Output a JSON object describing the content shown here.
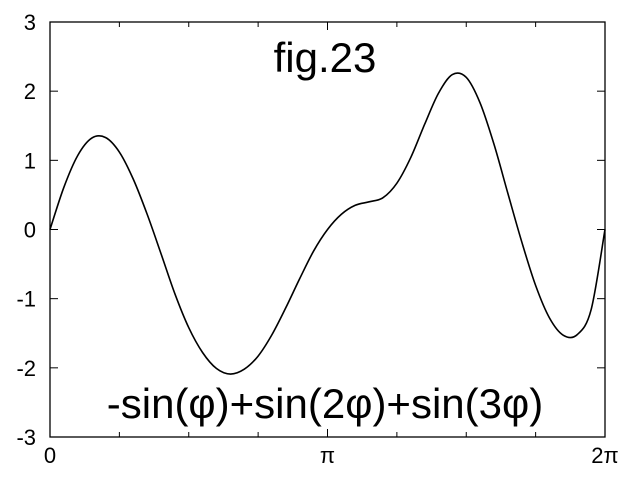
{
  "chart_data": {
    "type": "line",
    "title": "fig.23",
    "annotation": "-sin(φ)+sin(2φ)+sin(3φ)",
    "xlabel": "",
    "ylabel": "",
    "xlim": [
      0,
      6.283185307
    ],
    "ylim": [
      -3,
      3
    ],
    "grid": false,
    "x_ticks": [
      {
        "value": 0,
        "label": "0"
      },
      {
        "value": 3.141592654,
        "label": "π"
      },
      {
        "value": 6.283185307,
        "label": "2π"
      }
    ],
    "y_ticks": [
      {
        "value": -3,
        "label": "-3"
      },
      {
        "value": -2,
        "label": "-2"
      },
      {
        "value": -1,
        "label": "-1"
      },
      {
        "value": 0,
        "label": "0"
      },
      {
        "value": 1,
        "label": "1"
      },
      {
        "value": 2,
        "label": "2"
      },
      {
        "value": 3,
        "label": "3"
      }
    ],
    "series": [
      {
        "color": "#000000",
        "x": [
          0,
          0.157,
          0.314,
          0.471,
          0.628,
          0.785,
          0.942,
          1.1,
          1.257,
          1.414,
          1.571,
          1.728,
          1.885,
          2.042,
          2.199,
          2.356,
          2.513,
          2.67,
          2.827,
          2.985,
          3.142,
          3.299,
          3.456,
          3.613,
          3.77,
          3.927,
          4.084,
          4.241,
          4.398,
          4.555,
          4.712,
          4.869,
          5.027,
          5.184,
          5.341,
          5.498,
          5.655,
          5.812,
          5.969,
          6.126,
          6.283
        ],
        "y": [
          0,
          0.61,
          1.07,
          1.32,
          1.33,
          1.12,
          0.73,
          0.22,
          -0.35,
          -0.93,
          -1.42,
          -1.78,
          -2.01,
          -2.09,
          -2.02,
          -1.83,
          -1.52,
          -1.13,
          -0.71,
          -0.31,
          0,
          0.22,
          0.35,
          0.4,
          0.46,
          0.67,
          1.04,
          1.52,
          1.97,
          2.24,
          2.2,
          1.83,
          1.23,
          0.52,
          -0.18,
          -0.81,
          -1.28,
          -1.53,
          -1.52,
          -1.16,
          0
        ]
      }
    ]
  }
}
